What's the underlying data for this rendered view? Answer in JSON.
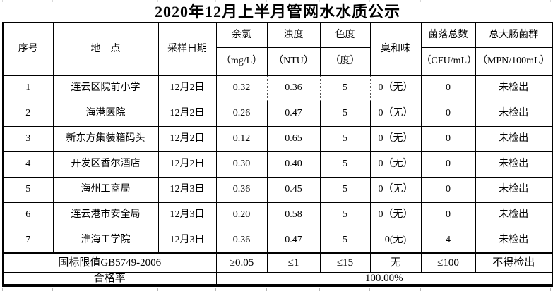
{
  "title": "2020年12月上半月管网水水质公示",
  "table": {
    "columns": [
      {
        "label": "序号"
      },
      {
        "label": "地　点"
      },
      {
        "label": "采样日期"
      },
      {
        "label": "余氯",
        "unit": "（mg/L）"
      },
      {
        "label": "浊度",
        "unit": "（NTU）"
      },
      {
        "label": "色度",
        "unit": "（度）"
      },
      {
        "label": "臭和味"
      },
      {
        "label": "菌落总数",
        "unit": "（CFU/mL）"
      },
      {
        "label": "总大肠菌群",
        "unit": "（MPN/100mL）"
      }
    ],
    "rows": [
      [
        "1",
        "连云区院前小学",
        "12月2日",
        "0.32",
        "0.36",
        "5",
        "0（无）",
        "0",
        "未检出"
      ],
      [
        "2",
        "海港医院",
        "12月2日",
        "0.26",
        "0.47",
        "5",
        "0（无）",
        "0",
        "未检出"
      ],
      [
        "3",
        "新东方集装箱码头",
        "12月2日",
        "0.12",
        "0.65",
        "5",
        "0（无）",
        "0",
        "未检出"
      ],
      [
        "4",
        "开发区香尔酒店",
        "12月2日",
        "0.30",
        "0.40",
        "5",
        "0（无）",
        "0",
        "未检出"
      ],
      [
        "5",
        "海州工商局",
        "12月3日",
        "0.36",
        "0.45",
        "5",
        "0（无）",
        "0",
        "未检出"
      ],
      [
        "6",
        "连云港市安全局",
        "12月3日",
        "0.20",
        "0.58",
        "5",
        "0（无）",
        "0",
        "未检出"
      ],
      [
        "7",
        "淮海工学院",
        "12月3日",
        "0.36",
        "0.47",
        "5",
        "0(无)",
        "4",
        "未检出"
      ]
    ],
    "limits": {
      "label": "国标限值GB5749-2006",
      "values": [
        "≥0.05",
        "≤1",
        "≤15",
        "无",
        "≤100",
        "不得检出"
      ]
    },
    "pass_rate": {
      "label": "合格率",
      "value": "100.00%"
    }
  },
  "colors": {
    "text": "#000000",
    "border": "#000000",
    "background": "#ffffff",
    "page_gridline": "#d9d9d9"
  }
}
